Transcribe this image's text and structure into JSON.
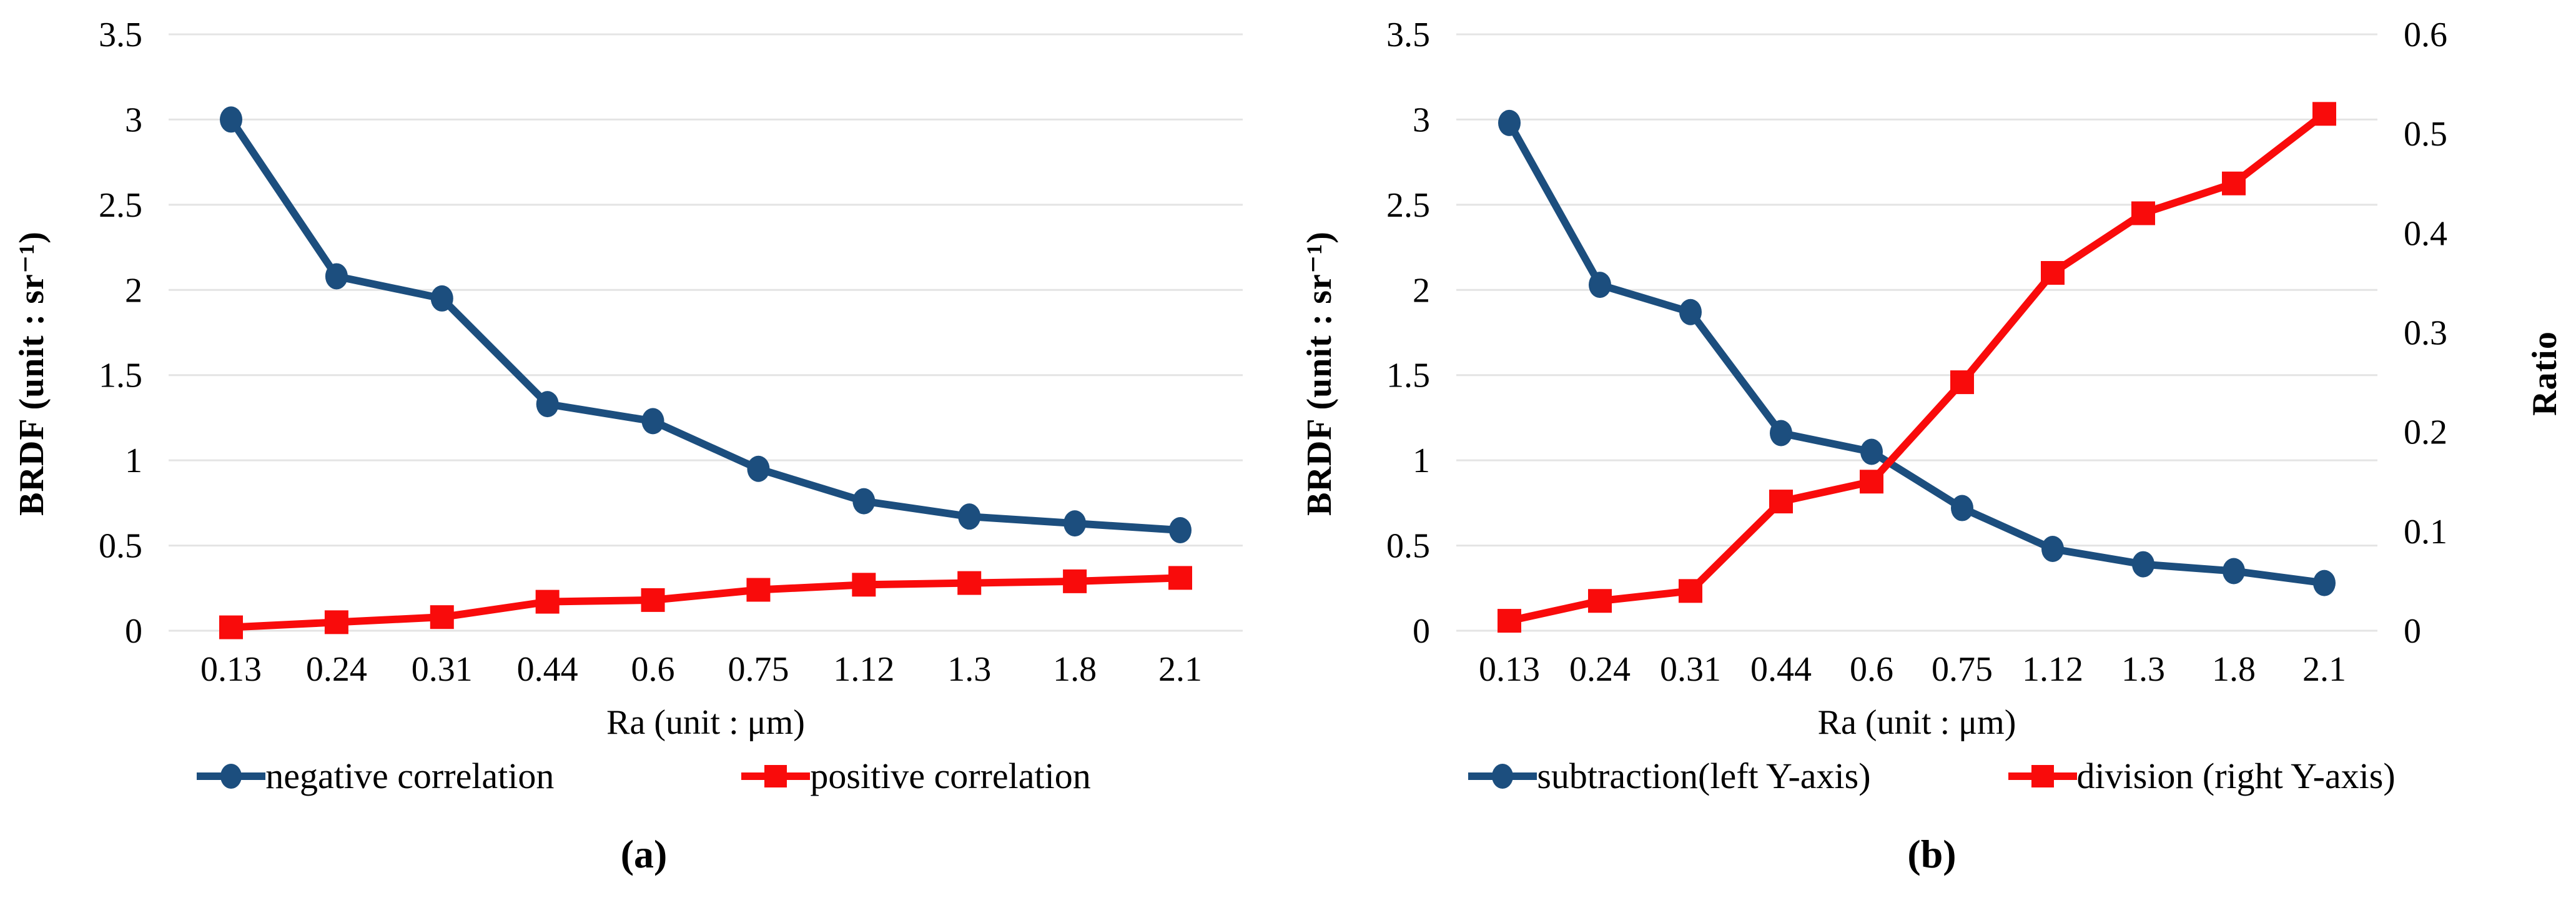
{
  "colors": {
    "series_blue": "#1C4E7E",
    "series_red": "#F90B0B",
    "grid": "#E4E4E4",
    "text": "#000000"
  },
  "chart_data": [
    {
      "type": "line",
      "caption": "(a)",
      "categories": [
        "0.13",
        "0.24",
        "0.31",
        "0.44",
        "0.6",
        "0.75",
        "1.12",
        "1.3",
        "1.8",
        "2.1"
      ],
      "xlabel": "Ra (unit : μm)",
      "ylabel": "BRDF (unit : sr⁻¹)",
      "ylim": [
        0,
        3.5
      ],
      "yticks": [
        "0",
        "0.5",
        "1",
        "1.5",
        "2",
        "2.5",
        "3",
        "3.5"
      ],
      "grid": true,
      "legend_position": "bottom",
      "series": [
        {
          "name": "negative correlation",
          "axis": "left",
          "marker": "circle",
          "color": "#1C4E7E",
          "values": [
            3.0,
            2.08,
            1.95,
            1.33,
            1.23,
            0.95,
            0.76,
            0.67,
            0.63,
            0.59
          ]
        },
        {
          "name": "positive correlation",
          "axis": "left",
          "marker": "square",
          "color": "#F90B0B",
          "values": [
            0.02,
            0.05,
            0.08,
            0.17,
            0.18,
            0.24,
            0.27,
            0.28,
            0.29,
            0.31
          ]
        }
      ]
    },
    {
      "type": "line",
      "caption": "(b)",
      "categories": [
        "0.13",
        "0.24",
        "0.31",
        "0.44",
        "0.6",
        "0.75",
        "1.12",
        "1.3",
        "1.8",
        "2.1"
      ],
      "xlabel": "Ra (unit : μm)",
      "ylabel": "BRDF (unit : sr⁻¹)",
      "y2label": "Ratio",
      "ylim": [
        0,
        3.5
      ],
      "yticks": [
        "0",
        "0.5",
        "1",
        "1.5",
        "2",
        "2.5",
        "3",
        "3.5"
      ],
      "y2lim": [
        0,
        0.6
      ],
      "y2ticks": [
        "0",
        "0.1",
        "0.2",
        "0.3",
        "0.4",
        "0.5",
        "0.6"
      ],
      "grid": true,
      "legend_position": "bottom",
      "series": [
        {
          "name": "subtraction(left Y-axis)",
          "axis": "left",
          "marker": "circle",
          "color": "#1C4E7E",
          "values": [
            2.98,
            2.03,
            1.87,
            1.16,
            1.05,
            0.72,
            0.48,
            0.39,
            0.35,
            0.28
          ]
        },
        {
          "name": "division (right Y-axis)",
          "axis": "right",
          "marker": "square",
          "color": "#F90B0B",
          "values": [
            0.01,
            0.03,
            0.04,
            0.13,
            0.15,
            0.25,
            0.36,
            0.42,
            0.45,
            0.52
          ]
        }
      ]
    }
  ]
}
